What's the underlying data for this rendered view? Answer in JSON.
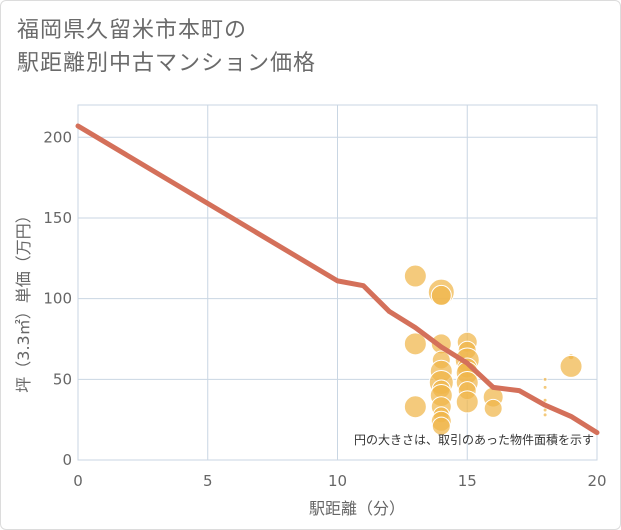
{
  "title_lines": [
    "福岡県久留米市本町の",
    "駅距離別中古マンション価格"
  ],
  "chart_data": {
    "type": "scatter",
    "title": "福岡県久留米市本町の駅距離別中古マンション価格",
    "xlabel": "駅距離（分）",
    "ylabel": "坪（3.3㎡）単価（万円）",
    "xlim": [
      0,
      20
    ],
    "ylim": [
      0,
      220
    ],
    "x_ticks": [
      0,
      5,
      10,
      15,
      20
    ],
    "y_ticks": [
      0,
      50,
      100,
      150,
      200
    ],
    "grid": true,
    "annotation": "円の大きさは、取引のあった物件面積を示す",
    "line_series": {
      "x": [
        0,
        10,
        11,
        12,
        13,
        14,
        15,
        16,
        17,
        18,
        19,
        20
      ],
      "y": [
        207,
        111,
        108,
        92,
        82,
        70,
        60,
        45,
        43,
        34,
        27,
        17
      ]
    },
    "bubbles": [
      {
        "x": 13,
        "y": 114,
        "size": 11
      },
      {
        "x": 13,
        "y": 72,
        "size": 11
      },
      {
        "x": 13,
        "y": 33,
        "size": 11
      },
      {
        "x": 14,
        "y": 104,
        "size": 13
      },
      {
        "x": 14,
        "y": 102,
        "size": 10
      },
      {
        "x": 14,
        "y": 72,
        "size": 10
      },
      {
        "x": 14,
        "y": 62,
        "size": 9
      },
      {
        "x": 14,
        "y": 55,
        "size": 11
      },
      {
        "x": 14,
        "y": 48,
        "size": 12
      },
      {
        "x": 14,
        "y": 44,
        "size": 9
      },
      {
        "x": 14,
        "y": 40,
        "size": 11
      },
      {
        "x": 14,
        "y": 33,
        "size": 10
      },
      {
        "x": 14,
        "y": 28,
        "size": 8
      },
      {
        "x": 14,
        "y": 24,
        "size": 10
      },
      {
        "x": 14,
        "y": 21,
        "size": 9
      },
      {
        "x": 15,
        "y": 73,
        "size": 10
      },
      {
        "x": 15,
        "y": 68,
        "size": 9
      },
      {
        "x": 15,
        "y": 62,
        "size": 12
      },
      {
        "x": 15,
        "y": 57,
        "size": 10
      },
      {
        "x": 15,
        "y": 54,
        "size": 11
      },
      {
        "x": 15,
        "y": 48,
        "size": 11
      },
      {
        "x": 15,
        "y": 43,
        "size": 9
      },
      {
        "x": 15,
        "y": 36,
        "size": 11
      },
      {
        "x": 16,
        "y": 39,
        "size": 10
      },
      {
        "x": 16,
        "y": 32,
        "size": 9
      },
      {
        "x": 18,
        "y": 50,
        "size": 2
      },
      {
        "x": 18,
        "y": 45,
        "size": 2
      },
      {
        "x": 18,
        "y": 37,
        "size": 2
      },
      {
        "x": 18,
        "y": 31,
        "size": 2
      },
      {
        "x": 18,
        "y": 28,
        "size": 2
      },
      {
        "x": 19,
        "y": 64,
        "size": 3
      },
      {
        "x": 19,
        "y": 58,
        "size": 11
      }
    ],
    "colors": {
      "bubble": "#f0b549",
      "line": "#d4705a",
      "grid": "#c9d6e3"
    }
  }
}
